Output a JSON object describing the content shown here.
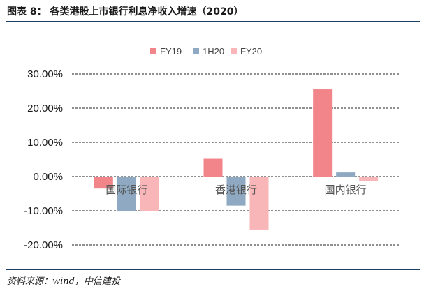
{
  "header": {
    "title": "图表 8：  各类港股上市银行利息净收入增速（2020）"
  },
  "footer": {
    "source": "资料来源：wind，中信建投"
  },
  "chart_data": {
    "type": "bar",
    "categories": [
      "国际银行",
      "香港银行",
      "国内银行"
    ],
    "series": [
      {
        "name": "FY19",
        "color": "#f2858a",
        "values": [
          -3.5,
          5.2,
          25.5
        ]
      },
      {
        "name": "1H20",
        "color": "#8ea9c1",
        "values": [
          -10.0,
          -8.5,
          1.2
        ]
      },
      {
        "name": "FY20",
        "color": "#f8b6b8",
        "values": [
          -10.0,
          -15.5,
          -1.3
        ]
      }
    ],
    "ylim": [
      -20,
      30
    ],
    "yticks": [
      30,
      20,
      10,
      0,
      -10,
      -20
    ],
    "ytick_labels": [
      "30.00%",
      "20.00%",
      "10.00%",
      "0.00%",
      "-10.00%",
      "-20.00%"
    ],
    "grid": true,
    "legend_position": "top-center",
    "xlabel": "",
    "ylabel": ""
  }
}
